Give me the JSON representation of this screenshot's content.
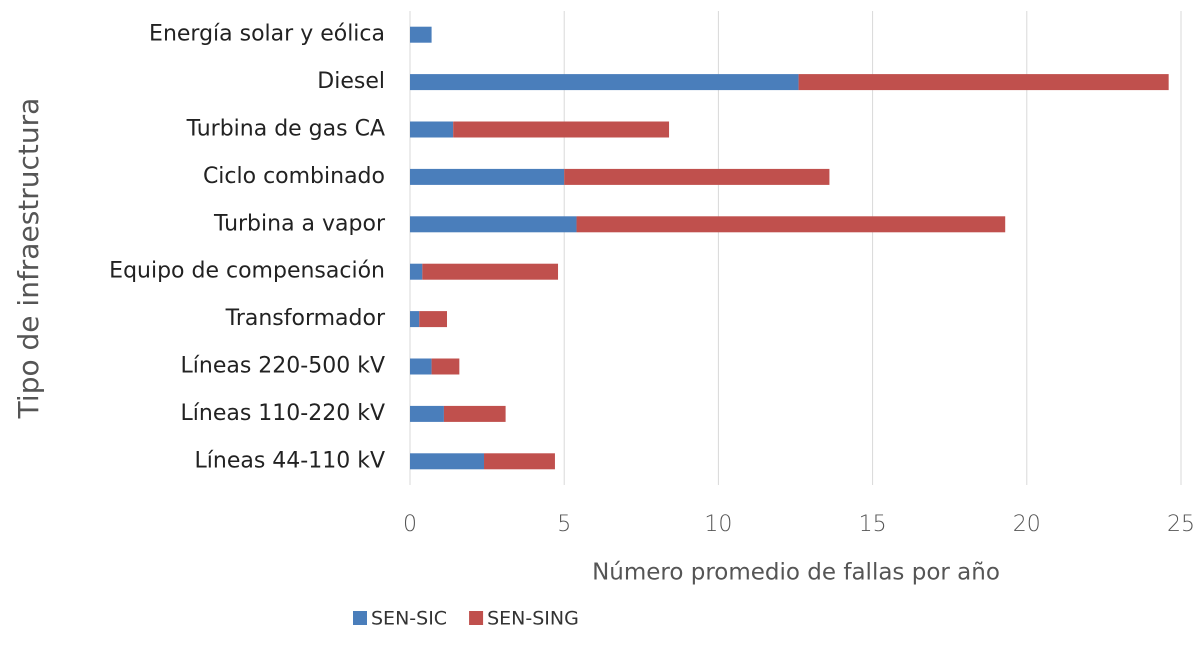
{
  "chart_data": {
    "type": "stacked-barh",
    "categories": [
      "Energía solar y eólica",
      "Diesel",
      "Turbina de gas CA",
      "Ciclo combinado",
      "Turbina a vapor",
      "Equipo de compensación",
      "Transformador",
      "Líneas 220-500 kV",
      "Líneas 110-220 kV",
      "Líneas 44-110 kV"
    ],
    "series": [
      {
        "name": "SEN-SIC",
        "color": "#4a7ebb",
        "values": [
          0.7,
          12.6,
          1.4,
          5.0,
          5.4,
          0.4,
          0.3,
          0.7,
          1.1,
          2.4
        ]
      },
      {
        "name": "SEN-SING",
        "color": "#c0504d",
        "values": [
          0,
          12.0,
          7.0,
          8.6,
          13.9,
          4.4,
          0.9,
          0.9,
          2.0,
          2.3
        ]
      }
    ],
    "xlim": [
      0,
      25
    ],
    "xticks": [
      0,
      5,
      10,
      15,
      20,
      25
    ],
    "x_label": "Número promedio de fallas por año",
    "y_label": "Tipo de infraestructura",
    "grid": true,
    "legend": "bottom"
  }
}
